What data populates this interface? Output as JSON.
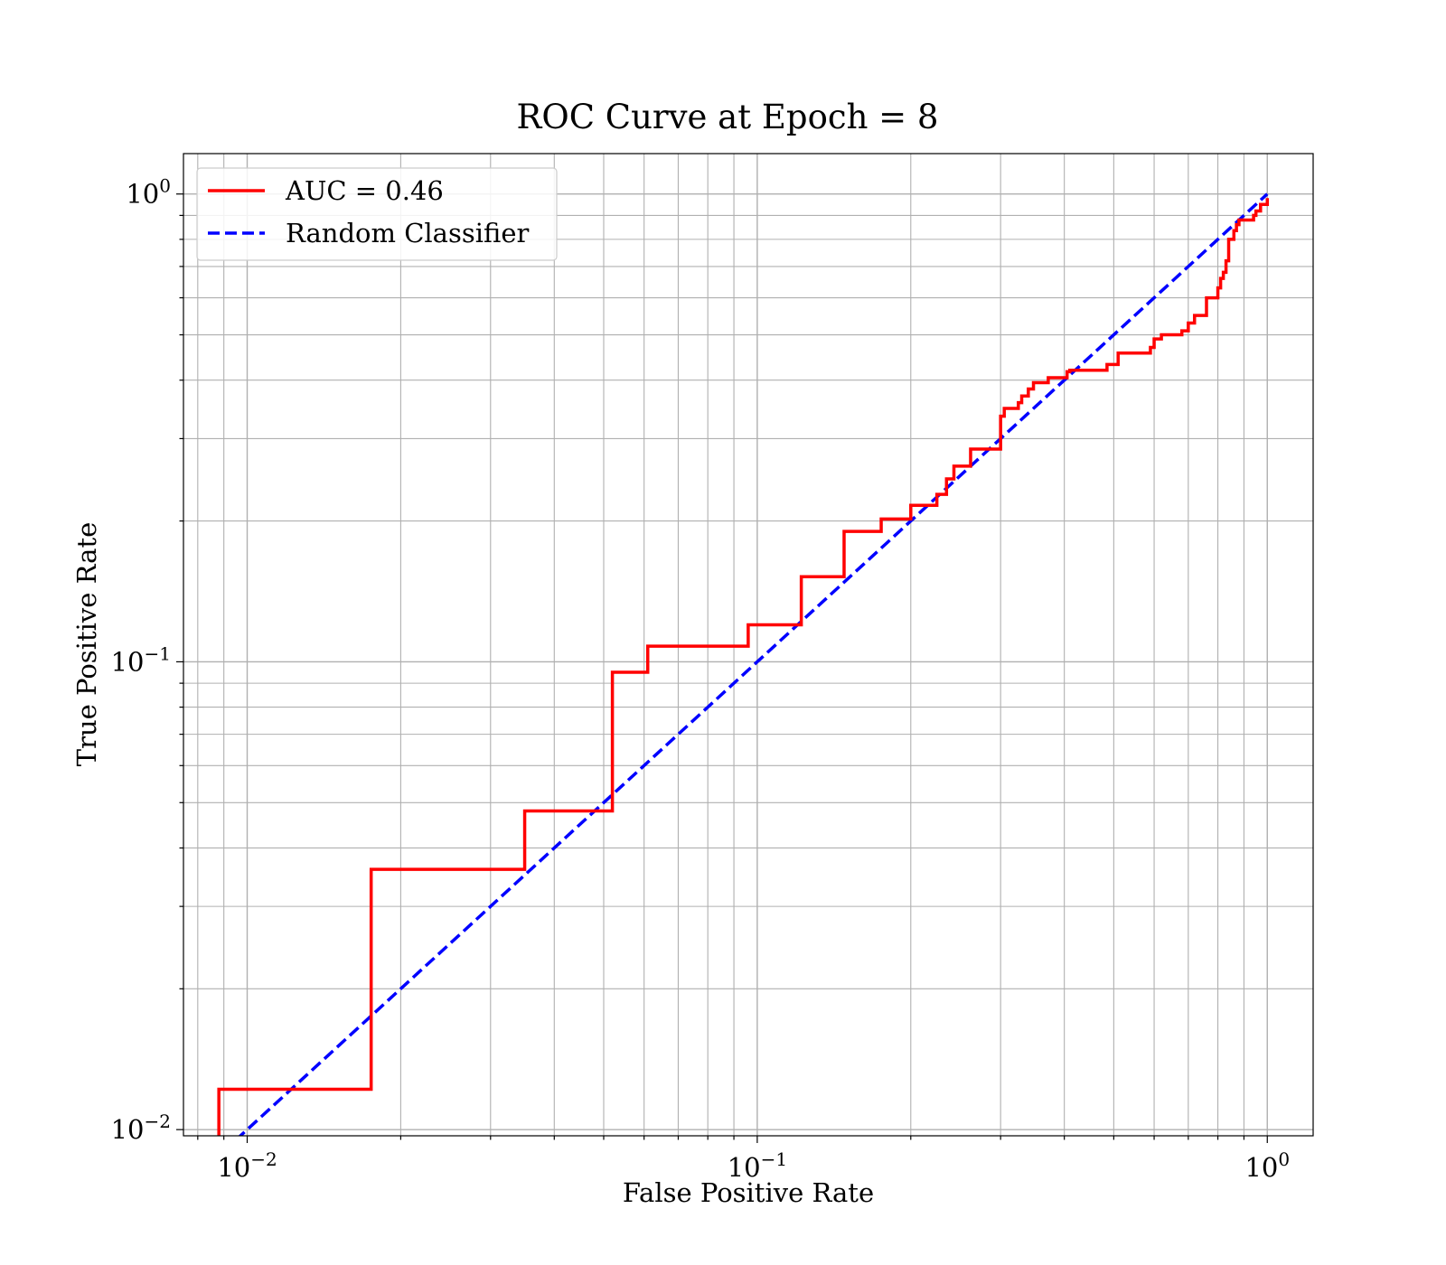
{
  "chart_data": {
    "type": "line",
    "title": "ROC Curve at Epoch = 8",
    "xlabel": "False Positive Rate",
    "ylabel": "True Positive Rate",
    "xscale": "log",
    "yscale": "log",
    "xlim": [
      0.0075,
      1.23
    ],
    "ylim": [
      0.0097,
      1.22
    ],
    "grid": "on (major and minor)",
    "legend_position": "top-left",
    "x_ticks": [
      {
        "value": 0.01,
        "base": "10",
        "exp": "−2"
      },
      {
        "value": 0.1,
        "base": "10",
        "exp": "−1"
      },
      {
        "value": 1,
        "base": "10",
        "exp": "0"
      }
    ],
    "y_ticks": [
      {
        "value": 0.01,
        "base": "10",
        "exp": "−2"
      },
      {
        "value": 0.1,
        "base": "10",
        "exp": "−1"
      },
      {
        "value": 1,
        "base": "10",
        "exp": "0"
      }
    ],
    "series": [
      {
        "name": "AUC = 0.46",
        "color": "#ff0000",
        "style": "solid",
        "x": [
          0.0088,
          0.0088,
          0.0175,
          0.0175,
          0.035,
          0.035,
          0.052,
          0.052,
          0.061,
          0.061,
          0.096,
          0.096,
          0.122,
          0.122,
          0.148,
          0.148,
          0.175,
          0.175,
          0.2,
          0.2,
          0.225,
          0.225,
          0.235,
          0.235,
          0.243,
          0.243,
          0.262,
          0.262,
          0.3,
          0.3,
          0.305,
          0.305,
          0.325,
          0.325,
          0.33,
          0.33,
          0.34,
          0.34,
          0.348,
          0.348,
          0.372,
          0.372,
          0.405,
          0.405,
          0.41,
          0.41,
          0.485,
          0.485,
          0.51,
          0.51,
          0.59,
          0.59,
          0.6,
          0.6,
          0.62,
          0.62,
          0.68,
          0.68,
          0.7,
          0.7,
          0.72,
          0.72,
          0.76,
          0.76,
          0.8,
          0.8,
          0.81,
          0.81,
          0.82,
          0.82,
          0.83,
          0.83,
          0.84,
          0.84,
          0.86,
          0.86,
          0.87,
          0.87,
          0.88,
          0.88,
          0.94,
          0.94,
          0.95,
          0.95,
          0.97,
          0.97,
          1.0,
          1.0
        ],
        "y": [
          0.0095,
          0.0122,
          0.0122,
          0.036,
          0.036,
          0.048,
          0.048,
          0.095,
          0.095,
          0.108,
          0.108,
          0.12,
          0.12,
          0.152,
          0.152,
          0.19,
          0.19,
          0.202,
          0.202,
          0.216,
          0.216,
          0.228,
          0.228,
          0.246,
          0.246,
          0.262,
          0.262,
          0.285,
          0.285,
          0.335,
          0.335,
          0.348,
          0.348,
          0.358,
          0.358,
          0.37,
          0.37,
          0.383,
          0.383,
          0.395,
          0.395,
          0.405,
          0.405,
          0.417,
          0.417,
          0.42,
          0.42,
          0.432,
          0.432,
          0.457,
          0.457,
          0.47,
          0.47,
          0.49,
          0.49,
          0.5,
          0.5,
          0.51,
          0.51,
          0.53,
          0.53,
          0.55,
          0.55,
          0.6,
          0.6,
          0.63,
          0.63,
          0.66,
          0.66,
          0.68,
          0.68,
          0.72,
          0.72,
          0.8,
          0.8,
          0.835,
          0.835,
          0.86,
          0.86,
          0.88,
          0.88,
          0.9,
          0.9,
          0.92,
          0.92,
          0.95,
          0.95,
          0.98
        ]
      },
      {
        "name": "Random Classifier",
        "color": "#0000ff",
        "style": "dashed",
        "x": [
          0.0095,
          1.0
        ],
        "y": [
          0.0095,
          1.0
        ]
      }
    ]
  }
}
